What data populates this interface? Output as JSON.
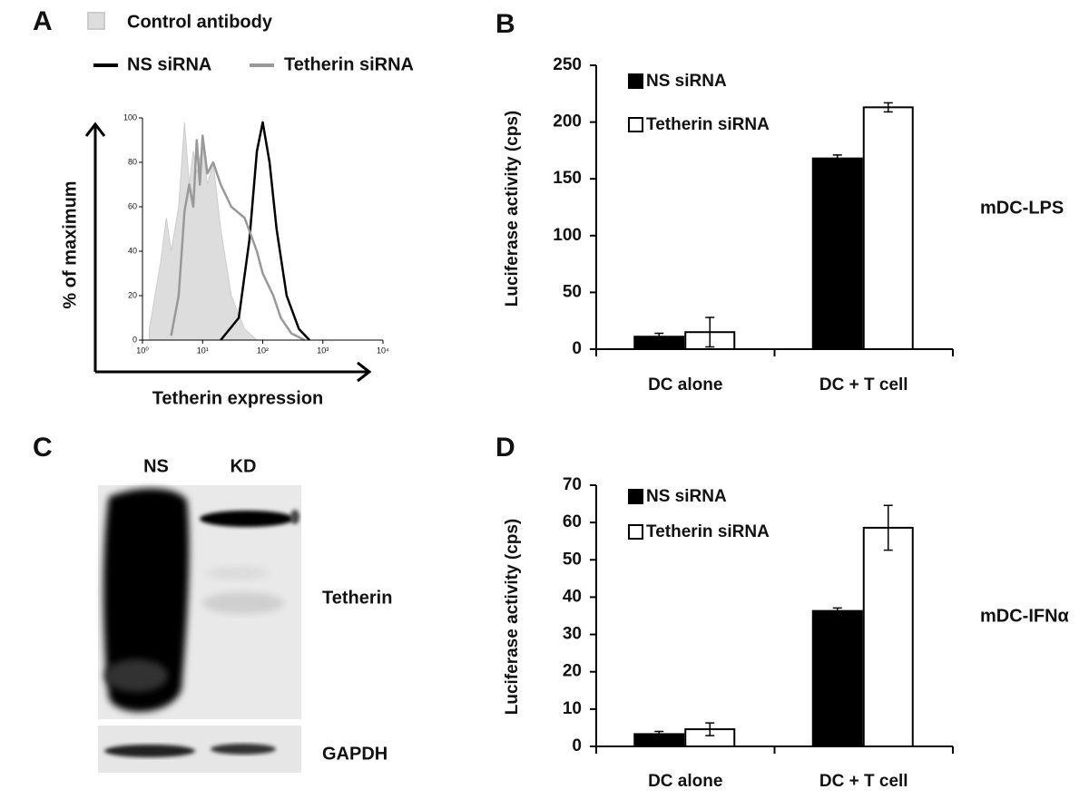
{
  "chart_data": [
    {
      "type": "line",
      "panel": "A",
      "xscale": "log",
      "xlabel": "Tetherin expression",
      "ylabel": "% of maximum",
      "xlim": [
        1,
        10000
      ],
      "ylim": [
        0,
        100
      ],
      "xticks": [
        {
          "value": 1,
          "label": "10⁰"
        },
        {
          "value": 10,
          "label": "10¹"
        },
        {
          "value": 100,
          "label": "10²"
        },
        {
          "value": 1000,
          "label": "10³"
        },
        {
          "value": 10000,
          "label": "10⁴"
        }
      ],
      "yticks": [
        0,
        20,
        40,
        60,
        80,
        100
      ],
      "series": [
        {
          "name": "Control antibody",
          "color": "#dddddd",
          "filled": true,
          "x": [
            1.3,
            2,
            2.5,
            3,
            4,
            5,
            6,
            7,
            8,
            10,
            12,
            15,
            20,
            30,
            50,
            80
          ],
          "values": [
            5,
            35,
            55,
            40,
            60,
            98,
            70,
            85,
            75,
            88,
            70,
            80,
            50,
            20,
            5,
            0
          ]
        },
        {
          "name": "NS siRNA",
          "color": "#000000",
          "filled": false,
          "x": [
            20,
            40,
            60,
            80,
            100,
            130,
            170,
            250,
            400,
            600
          ],
          "values": [
            0,
            10,
            45,
            85,
            98,
            80,
            50,
            20,
            5,
            0
          ]
        },
        {
          "name": "Tetherin siRNA",
          "color": "#999999",
          "filled": false,
          "x": [
            3,
            4,
            5,
            6,
            7,
            8,
            9,
            10,
            12,
            15,
            20,
            30,
            50,
            80,
            100,
            150,
            200,
            300,
            500
          ],
          "values": [
            2,
            20,
            58,
            70,
            60,
            90,
            70,
            92,
            75,
            80,
            70,
            60,
            55,
            40,
            30,
            20,
            10,
            3,
            0
          ]
        }
      ]
    },
    {
      "type": "bar",
      "panel": "B",
      "ylabel": "Luciferase activity (cps)",
      "annotation": "mDC-LPS",
      "categories": [
        "DC alone",
        "DC + T cell"
      ],
      "ylim": [
        0,
        250
      ],
      "yticks": [
        0,
        50,
        100,
        150,
        200,
        250
      ],
      "series": [
        {
          "name": "NS siRNA",
          "color": "#000000",
          "values": [
            11,
            168
          ],
          "errors": [
            3,
            3
          ]
        },
        {
          "name": "Tetherin siRNA",
          "color": "#ffffff",
          "values": [
            15,
            213
          ],
          "errors": [
            13,
            4
          ]
        }
      ]
    },
    {
      "type": "bar",
      "panel": "D",
      "ylabel": "Luciferase activity (cps)",
      "annotation": "mDC-IFNα",
      "categories": [
        "DC alone",
        "DC + T cell"
      ],
      "ylim": [
        0,
        70
      ],
      "yticks": [
        0,
        10,
        20,
        30,
        40,
        50,
        60,
        70
      ],
      "series": [
        {
          "name": "NS siRNA",
          "color": "#000000",
          "values": [
            3.3,
            36.3
          ],
          "errors": [
            0.7,
            0.8
          ]
        },
        {
          "name": "Tetherin siRNA",
          "color": "#ffffff",
          "values": [
            4.6,
            58.6
          ],
          "errors": [
            1.7,
            6
          ]
        }
      ]
    }
  ],
  "blot": {
    "panel": "C",
    "lanes": [
      "NS",
      "KD"
    ],
    "bands": [
      "Tetherin",
      "GAPDH"
    ]
  }
}
